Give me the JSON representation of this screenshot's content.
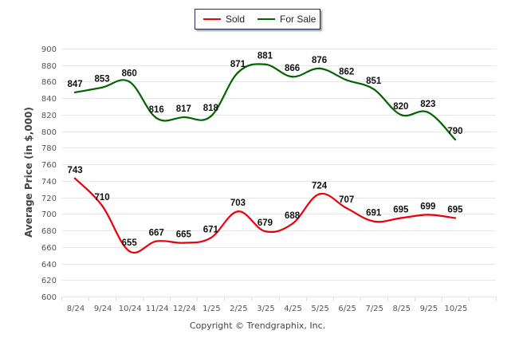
{
  "chart_data": {
    "type": "line",
    "title": "",
    "xlabel": "",
    "ylabel": "Average Price (in $,000)",
    "categories": [
      "8/24",
      "9/24",
      "10/24",
      "11/24",
      "12/24",
      "1/25",
      "2/25",
      "3/25",
      "4/25",
      "5/25",
      "6/25",
      "7/25",
      "8/25",
      "9/25",
      "10/25"
    ],
    "ylim": [
      600,
      900
    ],
    "yticks": [
      600,
      620,
      640,
      660,
      680,
      700,
      720,
      740,
      760,
      780,
      800,
      820,
      840,
      860,
      880,
      900
    ],
    "grid": true,
    "legend_position": "top-center",
    "series": [
      {
        "name": "Sold",
        "color": "#e8000b",
        "values": [
          743,
          710,
          655,
          667,
          665,
          671,
          703,
          679,
          688,
          724,
          707,
          691,
          695,
          699,
          695
        ]
      },
      {
        "name": "For Sale",
        "color": "#006400",
        "values": [
          847,
          853,
          860,
          816,
          817,
          818,
          871,
          881,
          866,
          876,
          862,
          851,
          820,
          823,
          790
        ]
      }
    ]
  },
  "legend": {
    "items": [
      {
        "label": "Sold",
        "color": "#e8000b"
      },
      {
        "label": "For Sale",
        "color": "#006400"
      }
    ]
  },
  "footer": {
    "copyright": "Copyright © Trendgraphix, Inc."
  }
}
